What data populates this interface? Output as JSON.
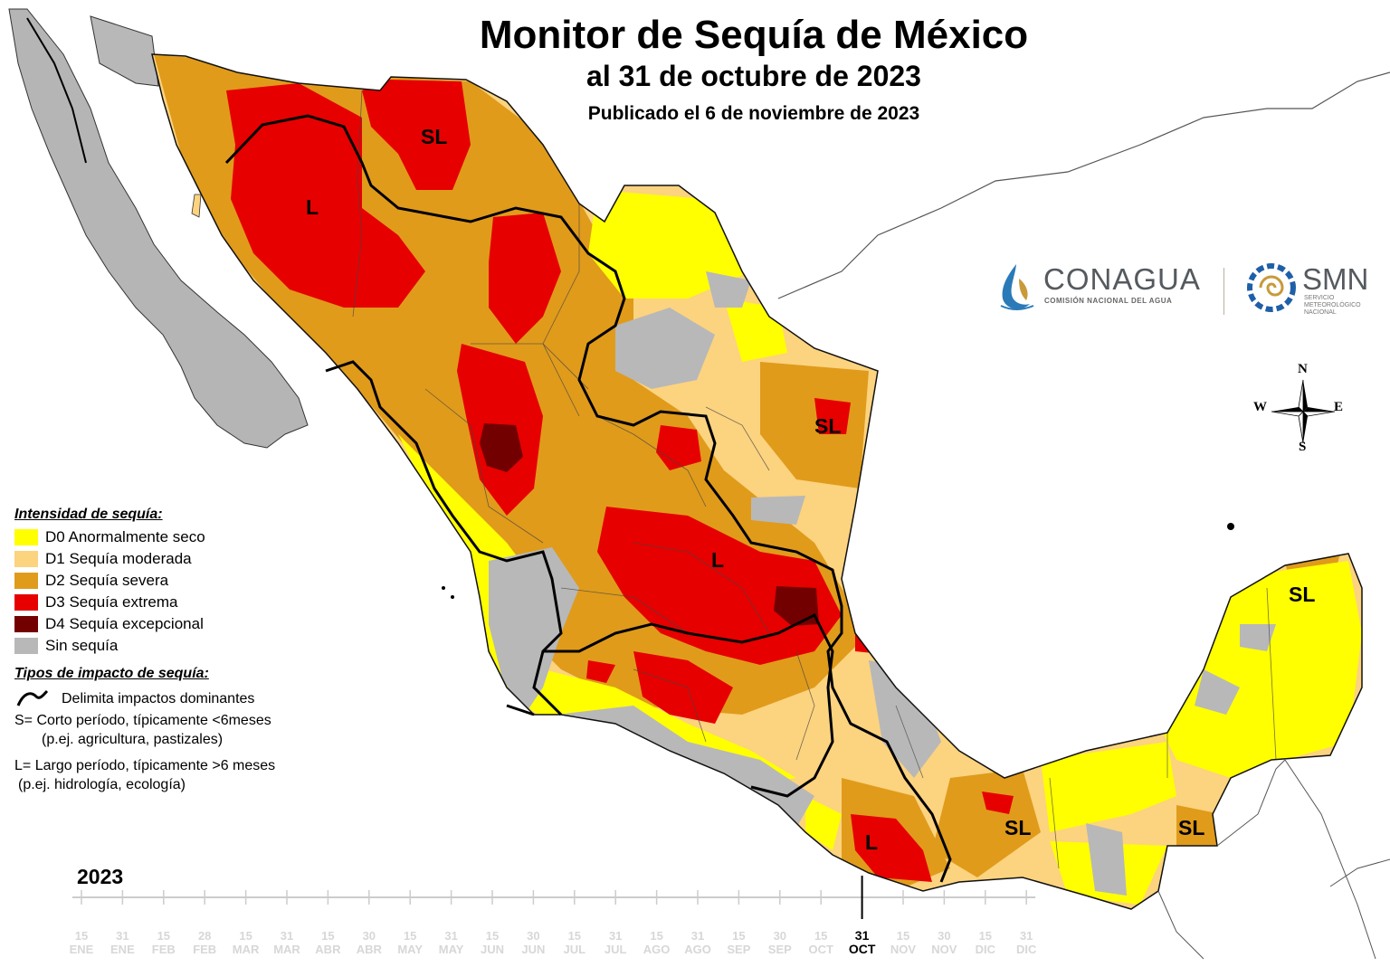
{
  "header": {
    "title": "Monitor de Sequía de México",
    "subtitle": "al 31 de octubre de 2023",
    "published": "Publicado el 6 de noviembre de 2023"
  },
  "legend": {
    "intensity_heading": "Intensidad de sequía:",
    "intensity_items": [
      {
        "label": "D0 Anormalmente seco",
        "color": "#ffff00"
      },
      {
        "label": "D1 Sequía moderada",
        "color": "#fcd37f"
      },
      {
        "label": "D2 Sequía severa",
        "color": "#e09b1b"
      },
      {
        "label": "D3 Sequía extrema",
        "color": "#e60000"
      },
      {
        "label": "D4 Sequía excepcional",
        "color": "#730000"
      },
      {
        "label": "Sin sequía",
        "color": "#b8b8b8"
      }
    ],
    "impact_heading": "Tipos de impacto de sequía:",
    "impact_line": "Delimita impactos dominantes",
    "impact_short": "S= Corto período, típicamente <6meses",
    "impact_short_example": "(p.ej. agricultura, pastizales)",
    "impact_long": "L= Largo período, típicamente >6 meses",
    "impact_long_example": "(p.ej. hidrología, ecología)"
  },
  "logos": {
    "conagua_name": "CONAGUA",
    "conagua_subtitle": "COMISIÓN NACIONAL DEL AGUA",
    "smn_name": "SMN",
    "smn_subtitle_1": "SERVICIO",
    "smn_subtitle_2": "METEOROLÓGICO",
    "smn_subtitle_3": "NACIONAL"
  },
  "compass": {
    "n": "N",
    "s": "S",
    "e": "E",
    "w": "W"
  },
  "impact_labels": {
    "sl_north": "SL",
    "l_sonora": "L",
    "sl_tamaulipas": "SL",
    "l_center": "L",
    "sl_yucatan": "SL",
    "sl_tabasco": "SL",
    "sl_chiapas": "SL",
    "l_oaxaca": "L"
  },
  "timeline": {
    "year": "2023",
    "current_index": 20,
    "ticks": [
      {
        "day": "15",
        "month": "ENE"
      },
      {
        "day": "31",
        "month": "ENE"
      },
      {
        "day": "15",
        "month": "FEB"
      },
      {
        "day": "28",
        "month": "FEB"
      },
      {
        "day": "15",
        "month": "MAR"
      },
      {
        "day": "31",
        "month": "MAR"
      },
      {
        "day": "15",
        "month": "ABR"
      },
      {
        "day": "30",
        "month": "ABR"
      },
      {
        "day": "15",
        "month": "MAY"
      },
      {
        "day": "31",
        "month": "MAY"
      },
      {
        "day": "15",
        "month": "JUN"
      },
      {
        "day": "30",
        "month": "JUN"
      },
      {
        "day": "15",
        "month": "JUL"
      },
      {
        "day": "31",
        "month": "JUL"
      },
      {
        "day": "15",
        "month": "AGO"
      },
      {
        "day": "31",
        "month": "AGO"
      },
      {
        "day": "15",
        "month": "SEP"
      },
      {
        "day": "30",
        "month": "SEP"
      },
      {
        "day": "15",
        "month": "OCT"
      },
      {
        "day": "31",
        "month": "OCT"
      },
      {
        "day": "15",
        "month": "NOV"
      },
      {
        "day": "30",
        "month": "NOV"
      },
      {
        "day": "15",
        "month": "DIC"
      },
      {
        "day": "31",
        "month": "DIC"
      }
    ]
  }
}
